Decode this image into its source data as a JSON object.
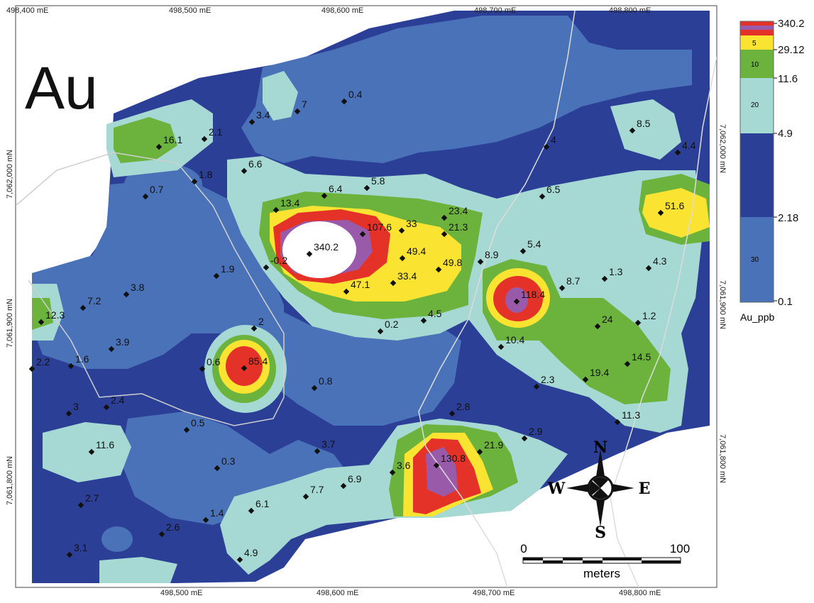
{
  "map_title": "Au",
  "x_ticks": [
    {
      "label": "498,400 mE",
      "value": 498400
    },
    {
      "label": "498,500 mE",
      "value": 498500
    },
    {
      "label": "498,600 mE",
      "value": 498600
    },
    {
      "label": "498,700 mE",
      "value": 498700
    },
    {
      "label": "498,800 mE",
      "value": 498800
    }
  ],
  "y_ticks": [
    {
      "label": "7,062,000 mN",
      "value": 7062000
    },
    {
      "label": "7,061,900 mN",
      "value": 7061900
    },
    {
      "label": "7,061,800 mN",
      "value": 7061800
    }
  ],
  "legend": {
    "title": "Au_ppb",
    "breaks": [
      "340.2",
      "29.12",
      "11.6",
      "4.9",
      "2.18",
      "0.1"
    ],
    "bands": [
      {
        "label": "5",
        "color": "#fbe331"
      },
      {
        "label": "10",
        "color": "#6cb33e"
      },
      {
        "label": "20",
        "color": "#a6d9d3"
      },
      {
        "label": "30",
        "color": "#4a72b8"
      }
    ],
    "colors": {
      "top": "#e53228",
      "purple": "#9a5aaa",
      "yellow": "#fbe331",
      "green": "#6cb33e",
      "cyan": "#a6d9d3",
      "navy": "#2b3f97",
      "blue": "#4a72b8"
    }
  },
  "compass": {
    "north": "N",
    "south": "S",
    "east": "E",
    "west": "W"
  },
  "scale_bar": {
    "start": "0",
    "end": "100",
    "unit": "meters"
  },
  "samples": [
    {
      "value": "340.2"
    },
    {
      "value": "107.6"
    },
    {
      "value": "33"
    },
    {
      "value": "49.4"
    },
    {
      "value": "49.8"
    },
    {
      "value": "33.4"
    },
    {
      "value": "47.1"
    },
    {
      "value": "13.4"
    },
    {
      "value": "6.4"
    },
    {
      "value": "5.8"
    },
    {
      "value": "23.4"
    },
    {
      "value": "21.3"
    },
    {
      "value": "118.4"
    },
    {
      "value": "85.4"
    },
    {
      "value": "130.8"
    },
    {
      "value": "51.6"
    },
    {
      "value": "16.1"
    },
    {
      "value": "12.3"
    },
    {
      "value": "11.6"
    },
    {
      "value": "21.9"
    },
    {
      "value": "24"
    },
    {
      "value": "19.4"
    },
    {
      "value": "14.5"
    },
    {
      "value": "11.3"
    },
    {
      "value": "10.4"
    },
    {
      "value": "8.9"
    },
    {
      "value": "8.7"
    },
    {
      "value": "8.5"
    },
    {
      "value": "7.7"
    },
    {
      "value": "7.2"
    },
    {
      "value": "6.9"
    },
    {
      "value": "6.6"
    },
    {
      "value": "6.5"
    },
    {
      "value": "6.1"
    },
    {
      "value": "5.4"
    },
    {
      "value": "4.9"
    },
    {
      "value": "4.5"
    },
    {
      "value": "4.4"
    },
    {
      "value": "4.3"
    },
    {
      "value": "4"
    },
    {
      "value": "3.9"
    },
    {
      "value": "3.8"
    },
    {
      "value": "3.7"
    },
    {
      "value": "3.6"
    },
    {
      "value": "3.4"
    },
    {
      "value": "3.1"
    },
    {
      "value": "3"
    },
    {
      "value": "2.9"
    },
    {
      "value": "2.8"
    },
    {
      "value": "2.7"
    },
    {
      "value": "2.6"
    },
    {
      "value": "2.5"
    },
    {
      "value": "2.4"
    },
    {
      "value": "2.3"
    },
    {
      "value": "2.2"
    },
    {
      "value": "2.1"
    },
    {
      "value": "2"
    },
    {
      "value": "1.9"
    },
    {
      "value": "1.8"
    },
    {
      "value": "1.6"
    },
    {
      "value": "1.4"
    },
    {
      "value": "1.3"
    },
    {
      "value": "1.2"
    },
    {
      "value": "0.8"
    },
    {
      "value": "0.7"
    },
    {
      "value": "0.6"
    },
    {
      "value": "0.5"
    },
    {
      "value": "0.4"
    },
    {
      "value": "0.3"
    },
    {
      "value": "0.2"
    },
    {
      "value": "-0.2"
    },
    {
      "value": "7"
    },
    {
      "value": "0.1"
    }
  ]
}
